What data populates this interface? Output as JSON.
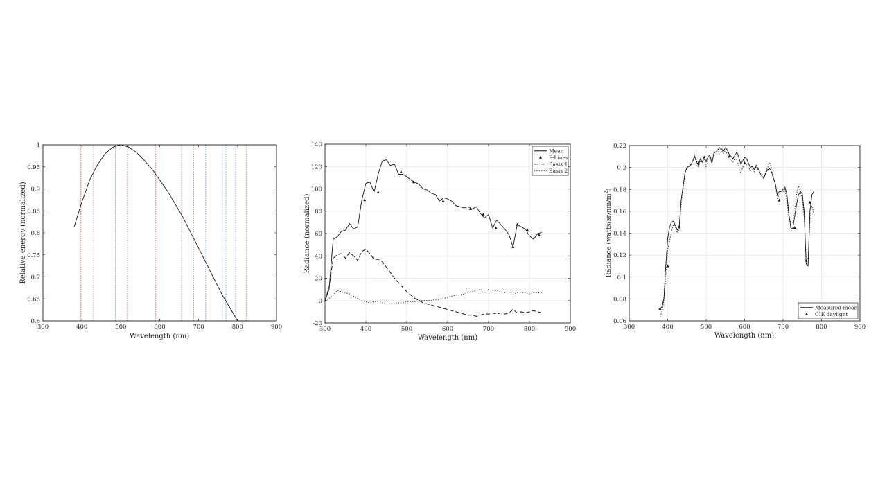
{
  "chart_data": [
    {
      "type": "line",
      "title": "",
      "xlabel": "Wavelength (nm)",
      "ylabel": "Relative energy (normalized)",
      "xlim": [
        300,
        900
      ],
      "ylim": [
        0.6,
        1.0
      ],
      "xticks": [
        "300",
        "400",
        "500",
        "600",
        "700",
        "800",
        "900"
      ],
      "yticks": [
        "0.6",
        "0.65",
        "0.7",
        "0.75",
        "0.8",
        "0.85",
        "0.9",
        "0.95",
        "1"
      ],
      "grid": false,
      "series": [
        {
          "style": "solid",
          "x": [
            380,
            400,
            420,
            440,
            460,
            480,
            500,
            520,
            540,
            560,
            580,
            600,
            620,
            640,
            660,
            680,
            700,
            720,
            740,
            760,
            780,
            800,
            820,
            830
          ],
          "y": [
            0.813,
            0.87,
            0.92,
            0.955,
            0.98,
            0.995,
            1.0,
            0.995,
            0.983,
            0.965,
            0.945,
            0.92,
            0.895,
            0.865,
            0.835,
            0.8,
            0.765,
            0.73,
            0.695,
            0.66,
            0.63,
            0.6,
            0.6,
            0.6
          ]
        }
      ],
      "vlines": [
        {
          "x": 397,
          "color": "#d9534f"
        },
        {
          "x": 430,
          "color": "#d9534f"
        },
        {
          "x": 486,
          "color": "#5b7fd6"
        },
        {
          "x": 517,
          "color": "#d9534f"
        },
        {
          "x": 589,
          "color": "#d9534f"
        },
        {
          "x": 656,
          "color": "#d9534f"
        },
        {
          "x": 687,
          "color": "#d9534f"
        },
        {
          "x": 718,
          "color": "#5b7fd6"
        },
        {
          "x": 760,
          "color": "#5b7fd6"
        },
        {
          "x": 770,
          "color": "#5b7fd6"
        },
        {
          "x": 795,
          "color": "#5b7fd6"
        },
        {
          "x": 823,
          "color": "#d9534f"
        }
      ]
    },
    {
      "type": "line",
      "title": "",
      "xlabel": "Wavelength (nm)",
      "ylabel": "Radiance (normalized)",
      "xlim": [
        300,
        900
      ],
      "ylim": [
        -20,
        140
      ],
      "xticks": [
        "300",
        "400",
        "500",
        "600",
        "700",
        "800",
        "900"
      ],
      "yticks": [
        "-20",
        "0",
        "20",
        "40",
        "60",
        "80",
        "100",
        "120",
        "140"
      ],
      "grid": true,
      "legend": {
        "placement": "top-right",
        "entries": [
          "Mean",
          "F-Lines",
          "Basis 1",
          "Basis 2"
        ]
      },
      "series": [
        {
          "name": "Mean",
          "style": "solid",
          "x": [
            300,
            310,
            320,
            330,
            340,
            350,
            360,
            370,
            380,
            390,
            400,
            410,
            420,
            430,
            440,
            450,
            460,
            470,
            480,
            490,
            500,
            510,
            520,
            530,
            540,
            550,
            560,
            570,
            580,
            590,
            600,
            610,
            620,
            630,
            640,
            650,
            660,
            670,
            680,
            690,
            700,
            710,
            720,
            730,
            740,
            750,
            760,
            770,
            780,
            790,
            800,
            810,
            820,
            830
          ],
          "y": [
            0,
            10,
            55,
            57,
            62,
            63,
            69,
            64,
            66,
            90,
            105,
            106,
            97,
            113,
            125,
            126,
            121,
            122,
            113,
            113,
            111,
            108,
            106,
            104,
            100,
            99,
            96,
            95,
            89,
            92,
            91,
            89,
            85,
            84,
            83,
            84,
            82,
            84,
            78,
            74,
            77,
            65,
            72,
            68,
            64,
            59,
            48,
            68,
            66,
            64,
            58,
            55,
            60,
            61
          ]
        },
        {
          "name": "F-Lines",
          "style": "marker",
          "x": [
            397,
            430,
            486,
            517,
            589,
            656,
            687,
            718,
            760,
            770,
            795,
            823
          ],
          "y": [
            90,
            97,
            115,
            106,
            89,
            82,
            77,
            65,
            48,
            68,
            63,
            59
          ]
        },
        {
          "name": "Basis 1",
          "style": "dashed",
          "x": [
            300,
            310,
            320,
            330,
            340,
            350,
            360,
            370,
            380,
            390,
            400,
            410,
            420,
            430,
            440,
            450,
            460,
            470,
            480,
            490,
            500,
            510,
            520,
            530,
            540,
            550,
            560,
            570,
            580,
            590,
            600,
            610,
            620,
            630,
            640,
            650,
            660,
            670,
            680,
            690,
            700,
            710,
            720,
            730,
            740,
            750,
            760,
            770,
            780,
            790,
            800,
            810,
            820,
            830
          ],
          "y": [
            0,
            12,
            38,
            41,
            42,
            38,
            43,
            40,
            36,
            44,
            46,
            42,
            37,
            37,
            35,
            30,
            25,
            20,
            16,
            12,
            8,
            5,
            2,
            0,
            -2,
            -3,
            -4,
            -5,
            -6,
            -7,
            -8,
            -9,
            -10,
            -11,
            -12,
            -13,
            -13,
            -14,
            -13,
            -12,
            -12,
            -11,
            -12,
            -11,
            -12,
            -11,
            -8,
            -11,
            -10,
            -11,
            -10,
            -9,
            -10,
            -11
          ]
        },
        {
          "name": "Basis 2",
          "style": "dotted",
          "x": [
            300,
            310,
            320,
            330,
            340,
            350,
            360,
            370,
            380,
            390,
            400,
            410,
            420,
            430,
            440,
            450,
            460,
            470,
            480,
            490,
            500,
            510,
            520,
            530,
            540,
            550,
            560,
            570,
            580,
            590,
            600,
            610,
            620,
            630,
            640,
            650,
            660,
            670,
            680,
            690,
            700,
            710,
            720,
            730,
            740,
            750,
            760,
            770,
            780,
            790,
            800,
            810,
            820,
            830
          ],
          "y": [
            0,
            2,
            5,
            9,
            8,
            7,
            6,
            4,
            2,
            0,
            -1,
            -2,
            -1,
            -1,
            -2,
            -3,
            -3,
            -2,
            -2,
            -2,
            -1,
            -1,
            -1,
            0,
            0,
            0,
            0,
            1,
            1,
            2,
            3,
            4,
            5,
            5,
            6,
            7,
            8,
            9,
            10,
            9,
            10,
            9,
            9,
            8,
            7,
            8,
            6,
            7,
            7,
            7,
            6,
            7,
            7,
            7
          ]
        }
      ]
    },
    {
      "type": "line",
      "title": "",
      "xlabel": "Wavelength (nm)",
      "ylabel": "Radiance (watts/sr/nm/m",
      "ylabel_sup": "2",
      "ylabel_end": ")",
      "xlim": [
        300,
        900
      ],
      "ylim": [
        0.06,
        0.22
      ],
      "xticks": [
        "300",
        "400",
        "500",
        "600",
        "700",
        "800",
        "900"
      ],
      "yticks": [
        "0.06",
        "0.08",
        "0.1",
        "0.12",
        "0.14",
        "0.16",
        "0.18",
        "0.2",
        "0.22"
      ],
      "grid": true,
      "legend": {
        "placement": "bottom-right",
        "entries": [
          "Measured mean",
          "CIE daylight"
        ]
      },
      "series": [
        {
          "name": "Measured mean",
          "style": "solid",
          "x": [
            380,
            385,
            390,
            395,
            400,
            405,
            410,
            415,
            420,
            425,
            430,
            435,
            440,
            445,
            450,
            455,
            460,
            465,
            470,
            475,
            480,
            485,
            490,
            495,
            500,
            505,
            510,
            515,
            520,
            525,
            530,
            535,
            540,
            545,
            550,
            555,
            560,
            565,
            570,
            575,
            580,
            585,
            590,
            595,
            600,
            605,
            610,
            615,
            620,
            625,
            630,
            635,
            640,
            645,
            650,
            655,
            660,
            665,
            670,
            675,
            680,
            685,
            690,
            695,
            700,
            705,
            710,
            715,
            720,
            725,
            730,
            735,
            740,
            745,
            750,
            755,
            760,
            765,
            770,
            775,
            780
          ],
          "y": [
            0.071,
            0.073,
            0.08,
            0.11,
            0.135,
            0.146,
            0.15,
            0.151,
            0.147,
            0.143,
            0.146,
            0.17,
            0.183,
            0.195,
            0.2,
            0.201,
            0.202,
            0.206,
            0.21,
            0.205,
            0.202,
            0.208,
            0.205,
            0.21,
            0.205,
            0.21,
            0.211,
            0.204,
            0.213,
            0.214,
            0.216,
            0.218,
            0.217,
            0.215,
            0.218,
            0.216,
            0.212,
            0.21,
            0.208,
            0.211,
            0.214,
            0.209,
            0.203,
            0.206,
            0.209,
            0.208,
            0.204,
            0.2,
            0.201,
            0.198,
            0.202,
            0.199,
            0.195,
            0.192,
            0.19,
            0.195,
            0.198,
            0.199,
            0.196,
            0.19,
            0.185,
            0.175,
            0.178,
            0.178,
            0.18,
            0.182,
            0.176,
            0.158,
            0.145,
            0.144,
            0.155,
            0.166,
            0.175,
            0.178,
            0.176,
            0.16,
            0.112,
            0.11,
            0.16,
            0.175,
            0.178
          ]
        },
        {
          "name": "CIE daylight",
          "style": "dotted",
          "x": [
            380,
            385,
            390,
            395,
            400,
            405,
            410,
            415,
            420,
            425,
            430,
            435,
            440,
            445,
            450,
            455,
            460,
            465,
            470,
            475,
            480,
            485,
            490,
            495,
            500,
            505,
            510,
            515,
            520,
            525,
            530,
            535,
            540,
            545,
            550,
            555,
            560,
            565,
            570,
            575,
            580,
            585,
            590,
            595,
            600,
            605,
            610,
            615,
            620,
            625,
            630,
            635,
            640,
            645,
            650,
            655,
            660,
            665,
            670,
            675,
            680,
            685,
            690,
            695,
            700,
            705,
            710,
            715,
            720,
            725,
            730,
            735,
            740,
            745,
            750,
            755,
            760,
            765,
            770,
            775,
            780
          ],
          "y": [
            0.064,
            0.068,
            0.078,
            0.098,
            0.125,
            0.133,
            0.142,
            0.148,
            0.146,
            0.14,
            0.143,
            0.165,
            0.18,
            0.195,
            0.199,
            0.2,
            0.203,
            0.205,
            0.212,
            0.207,
            0.2,
            0.206,
            0.204,
            0.209,
            0.2,
            0.208,
            0.21,
            0.204,
            0.21,
            0.212,
            0.213,
            0.217,
            0.216,
            0.213,
            0.216,
            0.212,
            0.208,
            0.206,
            0.205,
            0.208,
            0.207,
            0.201,
            0.195,
            0.2,
            0.204,
            0.203,
            0.2,
            0.197,
            0.198,
            0.196,
            0.201,
            0.198,
            0.196,
            0.194,
            0.191,
            0.196,
            0.2,
            0.204,
            0.2,
            0.192,
            0.184,
            0.172,
            0.175,
            0.176,
            0.178,
            0.18,
            0.17,
            0.155,
            0.15,
            0.15,
            0.16,
            0.175,
            0.183,
            0.178,
            0.17,
            0.155,
            0.118,
            0.116,
            0.152,
            0.165,
            0.158
          ]
        }
      ],
      "markers_series": {
        "name": "CIE daylight",
        "x": [
          380,
          400,
          430,
          480,
          560,
          600,
          690,
          730,
          760,
          770
        ],
        "y": [
          0.071,
          0.11,
          0.146,
          0.204,
          0.21,
          0.204,
          0.17,
          0.145,
          0.115,
          0.168
        ]
      }
    }
  ]
}
